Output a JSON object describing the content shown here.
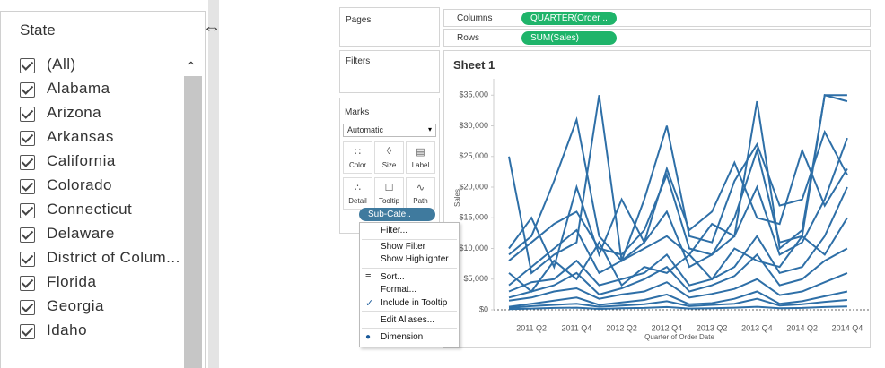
{
  "filter": {
    "title": "State",
    "items": [
      "(All)",
      "Alabama",
      "Arizona",
      "Arkansas",
      "California",
      "Colorado",
      "Connecticut",
      "Delaware",
      "District of Colum...",
      "Florida",
      "Georgia",
      "Idaho"
    ]
  },
  "side": {
    "pages": "Pages",
    "filters": "Filters",
    "marks": "Marks",
    "mark_type": "Automatic",
    "mark_buttons": [
      "Color",
      "Size",
      "Label",
      "Detail",
      "Tooltip",
      "Path"
    ],
    "pill": "Sub-Cate.."
  },
  "shelves": {
    "columns": "Columns",
    "columns_pill": "QUARTER(Order ..",
    "rows": "Rows",
    "rows_pill": "SUM(Sales)"
  },
  "sheet_title": "Sheet 1",
  "menu": [
    "Filter...",
    "Show Filter",
    "Show Highlighter",
    "Sort...",
    "Format...",
    "Include in Tooltip",
    "Edit Aliases...",
    "Dimension"
  ],
  "chart_data": {
    "type": "line",
    "x_label": "Quarter of Order Date",
    "y_label": "Sales",
    "categories": [
      null,
      "2011 Q2",
      null,
      "2011 Q4",
      null,
      "2012 Q2",
      null,
      "2012 Q4",
      null,
      "2013 Q2",
      null,
      "2013 Q4",
      null,
      "2014 Q2",
      null,
      "2014 Q4"
    ],
    "ylim": [
      0,
      36500
    ],
    "yticks": [
      {
        "value": 0,
        "label": "$0"
      },
      {
        "value": 5000,
        "label": "$5,000"
      },
      {
        "value": 10000,
        "label": "$10,000"
      },
      {
        "value": 15000,
        "label": "$15,000"
      },
      {
        "value": 20000,
        "label": "$20,000"
      },
      {
        "value": 25000,
        "label": "$25,000"
      },
      {
        "value": 30000,
        "label": "$30,000"
      },
      {
        "value": 35000,
        "label": "$35,000"
      }
    ],
    "series": [
      {
        "color": "#2e6fa7",
        "values": [
          25000,
          6000,
          9000,
          11000,
          35000,
          8000,
          10000,
          12000,
          9000,
          14000,
          12000,
          34000,
          10000,
          13000,
          35000,
          35000
        ]
      },
      {
        "color": "#2e6fa7",
        "values": [
          9000,
          12000,
          21000,
          31000,
          12000,
          8000,
          18000,
          30000,
          12000,
          11000,
          21000,
          27000,
          17000,
          18000,
          29000,
          22000
        ]
      },
      {
        "color": "#2e6fa7",
        "values": [
          8000,
          11000,
          14000,
          16000,
          10000,
          9000,
          13000,
          22000,
          10000,
          9000,
          15000,
          26000,
          11000,
          12000,
          35000,
          34000
        ]
      },
      {
        "color": "#2e6fa7",
        "values": [
          3000,
          4500,
          5000,
          8000,
          4000,
          5000,
          6000,
          9000,
          4000,
          5000,
          7000,
          12000,
          6000,
          7000,
          12000,
          20000
        ]
      },
      {
        "color": "#2e6fa7",
        "values": [
          2000,
          3000,
          4000,
          6000,
          2500,
          3500,
          5000,
          7000,
          3000,
          4000,
          5500,
          9000,
          4000,
          5000,
          8000,
          10000
        ]
      },
      {
        "color": "#2e6fa7",
        "values": [
          500,
          1000,
          1500,
          2000,
          800,
          1200,
          1600,
          2500,
          900,
          1100,
          1800,
          3000,
          1000,
          1400,
          2200,
          3000
        ]
      },
      {
        "color": "#2e6fa7",
        "values": [
          300,
          600,
          800,
          1000,
          500,
          700,
          900,
          1400,
          600,
          800,
          1000,
          1800,
          700,
          900,
          1300,
          1600
        ]
      },
      {
        "color": "#2e6fa7",
        "values": [
          4000,
          7000,
          10000,
          13000,
          6000,
          8000,
          11000,
          16000,
          7000,
          9000,
          12000,
          20000,
          9000,
          11000,
          18000,
          28000
        ]
      },
      {
        "color": "#2e6fa7",
        "values": [
          1500,
          2000,
          3000,
          3500,
          1800,
          2500,
          3000,
          4500,
          2000,
          2600,
          3400,
          5000,
          2400,
          3000,
          4500,
          6000
        ]
      },
      {
        "color": "#2e6fa7",
        "values": [
          10000,
          15000,
          7000,
          20000,
          9000,
          18000,
          11000,
          23000,
          13000,
          16000,
          24000,
          15000,
          14000,
          26000,
          17000,
          23000
        ]
      },
      {
        "color": "#2e6fa7",
        "values": [
          100,
          200,
          300,
          350,
          150,
          250,
          300,
          450,
          200,
          250,
          350,
          500,
          250,
          300,
          450,
          550
        ]
      },
      {
        "color": "#2e6fa7",
        "values": [
          6000,
          3000,
          8000,
          5000,
          11000,
          4000,
          7000,
          6000,
          9000,
          5000,
          10000,
          8000,
          7000,
          12000,
          9000,
          15000
        ]
      }
    ]
  }
}
